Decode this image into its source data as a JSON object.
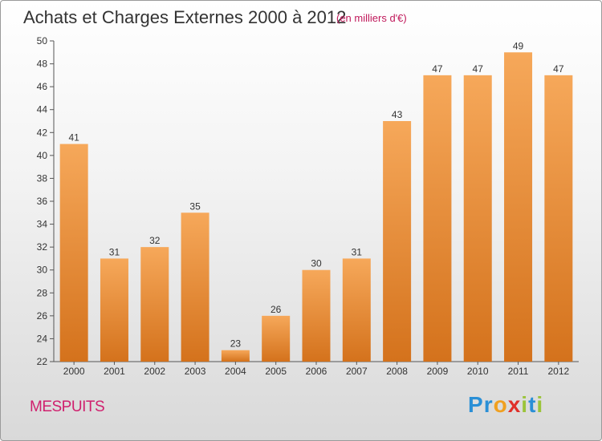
{
  "title": "Achats et Charges Externes 2000 à 2012",
  "unit": "(en milliers d'€)",
  "commune": "MESPUITS",
  "logo": {
    "letters": [
      "P",
      "r",
      "o",
      "x",
      "i",
      "t",
      "i"
    ],
    "colors": [
      "#2a8fd6",
      "#2a8fd6",
      "#f0a020",
      "#e0302a",
      "#9bc43a",
      "#2a8fd6",
      "#9bc43a"
    ]
  },
  "colors": {
    "bar_top": "#f6a85a",
    "bar_bottom": "#d4721c",
    "axis": "#555555",
    "grid": "#cccccc"
  },
  "chart_data": {
    "type": "bar",
    "title": "Achats et Charges Externes 2000 à 2012",
    "xlabel": "",
    "ylabel": "",
    "categories": [
      "2000",
      "2001",
      "2002",
      "2003",
      "2004",
      "2005",
      "2006",
      "2007",
      "2008",
      "2009",
      "2010",
      "2011",
      "2012"
    ],
    "values": [
      41,
      31,
      32,
      35,
      23,
      26,
      30,
      31,
      43,
      47,
      47,
      49,
      47
    ],
    "ylim": [
      22,
      50
    ],
    "yticks": [
      22,
      24,
      26,
      28,
      30,
      32,
      34,
      36,
      38,
      40,
      42,
      44,
      46,
      48,
      50
    ],
    "grid": false,
    "data_labels": true
  }
}
